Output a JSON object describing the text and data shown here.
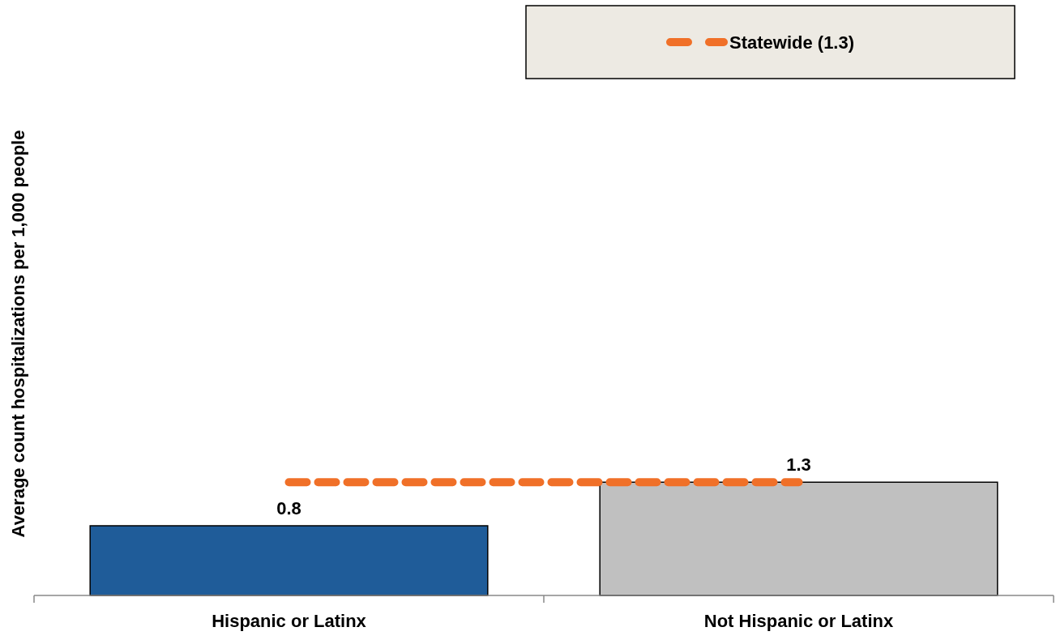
{
  "chart_data": {
    "type": "bar",
    "ylabel": "Average count hospitalizations per 1,000 people",
    "categories": [
      "Hispanic or Latinx",
      "Not Hispanic or Latinx"
    ],
    "values": [
      0.8,
      1.3
    ],
    "colors": [
      "#1f5c99",
      "#c0c0c0"
    ],
    "data_labels": true,
    "ref_lines": [
      {
        "axis": "y",
        "value": 1.3,
        "label": "Statewide (1.3)",
        "color": "#f07028",
        "line_style": "dashed"
      }
    ],
    "legend": "top right"
  }
}
